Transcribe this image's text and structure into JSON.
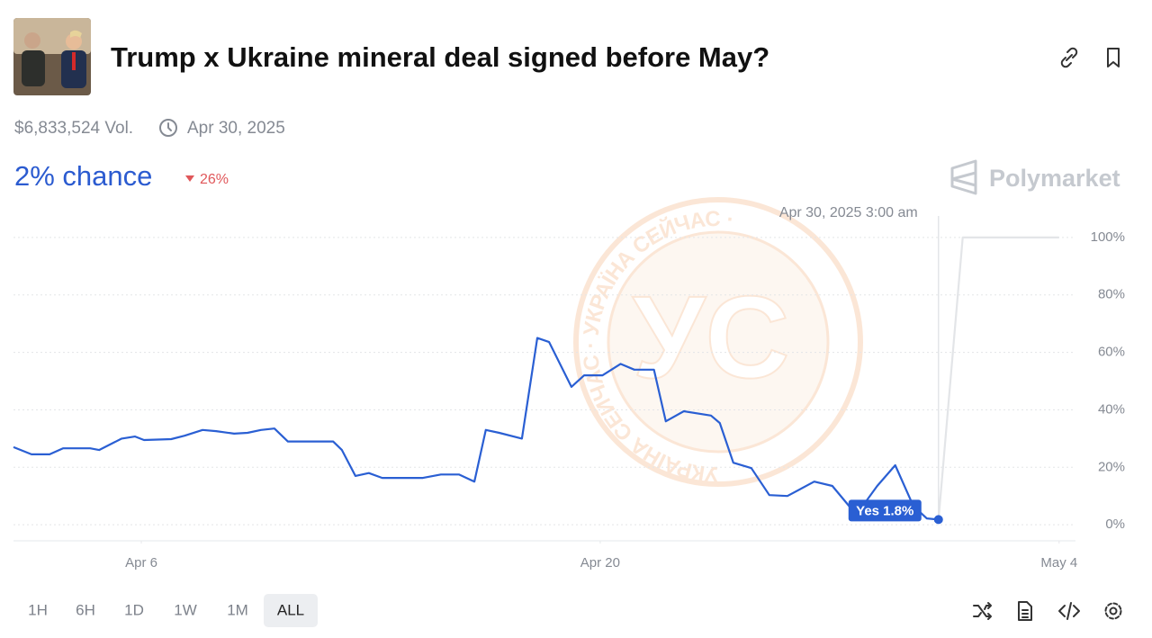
{
  "market": {
    "title": "Trump x Ukraine mineral deal signed before May?",
    "volume": "$6,833,524 Vol.",
    "end_date": "Apr 30, 2025",
    "chance": "2% chance",
    "change": "26%",
    "brand": "Polymarket"
  },
  "watermark": {
    "logo": "УС",
    "ring": "УКРАЇНА СЕЙЧАС · УКРАЇНА СЕЙЧАС ·"
  },
  "chart_data": {
    "type": "line",
    "x": [
      2.1,
      2.65,
      3.2,
      3.61,
      4.44,
      4.71,
      5.4,
      5.81,
      6.08,
      6.91,
      7.32,
      7.87,
      8.28,
      8.83,
      9.24,
      9.65,
      10.06,
      10.47,
      11.85,
      12.12,
      12.53,
      12.94,
      13.35,
      14.59,
      15.14,
      15.69,
      16.16,
      16.51,
      16.92,
      17.61,
      18.08,
      18.44,
      19.12,
      19.51,
      20.07,
      20.62,
      21.04,
      21.64,
      22.0,
      22.55,
      23.38,
      23.65,
      24.06,
      24.61,
      25.16,
      25.71,
      26.53,
      27.08,
      27.63,
      28.05,
      28.45,
      29.0,
      29.55,
      29.96,
      30.32
    ],
    "series": [
      {
        "color": "#2a5fd3",
        "values": [
          27,
          24.5,
          24.5,
          26.6,
          26.6,
          26,
          30,
          30.7,
          29.5,
          29.8,
          31,
          33,
          32.6,
          31.7,
          32,
          33,
          33.5,
          29,
          29,
          26,
          17,
          18,
          16.3,
          16.3,
          17.5,
          17.5,
          15,
          33,
          32,
          30,
          65,
          63.6,
          48,
          52,
          52,
          56,
          54,
          54,
          36,
          39.5,
          38,
          35.4,
          21.6,
          19.7,
          10.3,
          10,
          15,
          13.5,
          6,
          7.2,
          13.5,
          20.7,
          6.6,
          2.2,
          1.8
        ]
      },
      {
        "color": "#e3e5e8",
        "x": [
          30.32,
          31.06,
          34
        ],
        "values": [
          1.8,
          100,
          100
        ]
      }
    ],
    "xlim": [
      2.1,
      34.5
    ],
    "xticks": [
      {
        "value": 6,
        "label": "Apr 6"
      },
      {
        "value": 20,
        "label": "Apr 20"
      },
      {
        "value": 34,
        "label": "May 4"
      }
    ],
    "ylim": [
      -5.6,
      110
    ],
    "yticks": [
      {
        "value": 0,
        "label": "0%"
      },
      {
        "value": 20,
        "label": "20%"
      },
      {
        "value": 40,
        "label": "40%"
      },
      {
        "value": 60,
        "label": "60%"
      },
      {
        "value": 80,
        "label": "80%"
      },
      {
        "value": 100,
        "label": "100%"
      }
    ],
    "grid": true,
    "hover": {
      "date": "Apr 30, 2025 3:00 am",
      "label": "Yes 1.8%"
    }
  },
  "time_ranges": [
    "1H",
    "6H",
    "1D",
    "1W",
    "1M",
    "ALL"
  ],
  "active_range": 5
}
